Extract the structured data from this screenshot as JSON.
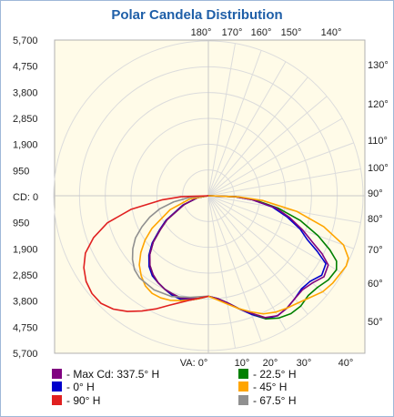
{
  "chart_data": {
    "type": "polar",
    "title": "Polar Candela Distribution",
    "candela_ticks": [
      "5,700",
      "4,750",
      "3,800",
      "2,850",
      "1,900",
      "950",
      "CD: 0",
      "950",
      "1,900",
      "2,850",
      "3,800",
      "4,750",
      "5,700"
    ],
    "top_angle_labels": [
      "180°",
      "170°",
      "160°",
      "150°",
      "140°"
    ],
    "right_angle_labels": [
      "130°",
      "120°",
      "110°",
      "100°",
      "90°",
      "80°",
      "70°",
      "60°",
      "50°"
    ],
    "bottom_angle_labels": [
      "VA: 0°",
      "10°",
      "20°",
      "30°",
      "40°"
    ],
    "rmax": 5700,
    "legend": [
      {
        "label": "- Max Cd: 337.5° H",
        "color": "#800080"
      },
      {
        "label": "- 22.5° H",
        "color": "#008000"
      },
      {
        "label": "- 0° H",
        "color": "#0000cc"
      },
      {
        "label": "- 45° H",
        "color": "#ffa500"
      },
      {
        "label": "- 90° H",
        "color": "#e02020"
      },
      {
        "label": "- 67.5° H",
        "color": "#909090"
      }
    ],
    "series": [
      {
        "color": "#0000cc",
        "right": true,
        "points": [
          [
            0,
            3700
          ],
          [
            5,
            3800
          ],
          [
            10,
            4000
          ],
          [
            15,
            4300
          ],
          [
            20,
            4650
          ],
          [
            25,
            5000
          ],
          [
            30,
            5100
          ],
          [
            35,
            5050
          ],
          [
            40,
            4950
          ],
          [
            45,
            4850
          ],
          [
            50,
            4900
          ],
          [
            55,
            5100
          ],
          [
            60,
            5000
          ],
          [
            63,
            4500
          ],
          [
            66,
            4000
          ],
          [
            70,
            3600
          ],
          [
            75,
            3000
          ],
          [
            80,
            2400
          ],
          [
            85,
            1600
          ],
          [
            88,
            1000
          ],
          [
            90,
            0
          ]
        ]
      },
      {
        "color": "#0000cc",
        "right": false,
        "points": [
          [
            0,
            3700
          ],
          [
            5,
            3800
          ],
          [
            10,
            3900
          ],
          [
            15,
            3950
          ],
          [
            20,
            3900
          ],
          [
            25,
            3800
          ],
          [
            30,
            3700
          ],
          [
            35,
            3600
          ],
          [
            40,
            3400
          ],
          [
            45,
            3100
          ],
          [
            50,
            2700
          ],
          [
            55,
            2200
          ],
          [
            60,
            1800
          ],
          [
            70,
            1000
          ],
          [
            80,
            400
          ],
          [
            90,
            0
          ]
        ]
      },
      {
        "color": "#008000",
        "right": true,
        "points": [
          [
            0,
            3700
          ],
          [
            5,
            3800
          ],
          [
            10,
            4000
          ],
          [
            15,
            4300
          ],
          [
            20,
            4600
          ],
          [
            25,
            5000
          ],
          [
            30,
            5200
          ],
          [
            35,
            5300
          ],
          [
            40,
            5300
          ],
          [
            45,
            5200
          ],
          [
            50,
            5250
          ],
          [
            55,
            5400
          ],
          [
            60,
            5450
          ],
          [
            63,
            5300
          ],
          [
            66,
            4900
          ],
          [
            70,
            4300
          ],
          [
            75,
            3500
          ],
          [
            80,
            2600
          ],
          [
            85,
            1700
          ],
          [
            88,
            1000
          ],
          [
            90,
            0
          ]
        ]
      },
      {
        "color": "#008000",
        "right": false,
        "points": [
          [
            0,
            3700
          ],
          [
            5,
            3800
          ],
          [
            10,
            3850
          ],
          [
            15,
            3900
          ],
          [
            20,
            3850
          ],
          [
            25,
            3800
          ],
          [
            30,
            3700
          ],
          [
            35,
            3550
          ],
          [
            40,
            3350
          ],
          [
            45,
            3050
          ],
          [
            50,
            2650
          ],
          [
            55,
            2150
          ],
          [
            60,
            1750
          ],
          [
            70,
            950
          ],
          [
            80,
            400
          ],
          [
            90,
            0
          ]
        ]
      },
      {
        "color": "#800080",
        "right": true,
        "points": [
          [
            0,
            3700
          ],
          [
            5,
            3800
          ],
          [
            10,
            4000
          ],
          [
            15,
            4300
          ],
          [
            20,
            4600
          ],
          [
            25,
            4950
          ],
          [
            30,
            5100
          ],
          [
            35,
            5050
          ],
          [
            40,
            4950
          ],
          [
            45,
            4900
          ],
          [
            50,
            5000
          ],
          [
            55,
            5200
          ],
          [
            60,
            5100
          ],
          [
            63,
            4700
          ],
          [
            66,
            4200
          ],
          [
            70,
            3700
          ],
          [
            75,
            3100
          ],
          [
            80,
            2500
          ],
          [
            85,
            1600
          ],
          [
            88,
            1000
          ],
          [
            90,
            0
          ]
        ]
      },
      {
        "color": "#800080",
        "right": false,
        "points": [
          [
            0,
            3700
          ],
          [
            5,
            3800
          ],
          [
            10,
            3850
          ],
          [
            15,
            3900
          ],
          [
            20,
            3850
          ],
          [
            25,
            3800
          ],
          [
            30,
            3700
          ],
          [
            35,
            3550
          ],
          [
            40,
            3350
          ],
          [
            45,
            3050
          ],
          [
            50,
            2650
          ],
          [
            55,
            2150
          ],
          [
            60,
            1750
          ],
          [
            70,
            950
          ],
          [
            80,
            400
          ],
          [
            90,
            0
          ]
        ]
      },
      {
        "color": "#ffa500",
        "right": true,
        "points": [
          [
            0,
            3700
          ],
          [
            5,
            3850
          ],
          [
            10,
            4050
          ],
          [
            15,
            4300
          ],
          [
            20,
            4550
          ],
          [
            25,
            4800
          ],
          [
            30,
            4950
          ],
          [
            35,
            5050
          ],
          [
            40,
            5150
          ],
          [
            45,
            5300
          ],
          [
            50,
            5500
          ],
          [
            55,
            5600
          ],
          [
            60,
            5650
          ],
          [
            63,
            5700
          ],
          [
            66,
            5650
          ],
          [
            70,
            5300
          ],
          [
            75,
            4400
          ],
          [
            80,
            3300
          ],
          [
            85,
            2000
          ],
          [
            88,
            1100
          ],
          [
            90,
            0
          ]
        ]
      },
      {
        "color": "#ffa500",
        "right": false,
        "points": [
          [
            0,
            3700
          ],
          [
            5,
            3800
          ],
          [
            10,
            3900
          ],
          [
            15,
            4000
          ],
          [
            20,
            4100
          ],
          [
            25,
            4150
          ],
          [
            30,
            4150
          ],
          [
            35,
            4050
          ],
          [
            40,
            3850
          ],
          [
            45,
            3600
          ],
          [
            50,
            3250
          ],
          [
            55,
            2850
          ],
          [
            60,
            2400
          ],
          [
            70,
            1500
          ],
          [
            80,
            700
          ],
          [
            90,
            0
          ]
        ]
      },
      {
        "color": "#909090",
        "right": false,
        "points": [
          [
            0,
            3700
          ],
          [
            10,
            3800
          ],
          [
            20,
            3950
          ],
          [
            30,
            4000
          ],
          [
            40,
            3950
          ],
          [
            45,
            3850
          ],
          [
            50,
            3650
          ],
          [
            55,
            3400
          ],
          [
            60,
            3100
          ],
          [
            65,
            2700
          ],
          [
            70,
            2300
          ],
          [
            75,
            1850
          ],
          [
            80,
            1300
          ],
          [
            85,
            700
          ],
          [
            90,
            0
          ]
        ]
      },
      {
        "color": "#e02020",
        "right": false,
        "points": [
          [
            0,
            3700
          ],
          [
            10,
            3900
          ],
          [
            20,
            4300
          ],
          [
            25,
            4600
          ],
          [
            30,
            4900
          ],
          [
            35,
            5200
          ],
          [
            40,
            5450
          ],
          [
            45,
            5600
          ],
          [
            50,
            5600
          ],
          [
            55,
            5500
          ],
          [
            60,
            5300
          ],
          [
            65,
            5000
          ],
          [
            70,
            4500
          ],
          [
            75,
            3850
          ],
          [
            80,
            2900
          ],
          [
            85,
            1700
          ],
          [
            88,
            1000
          ],
          [
            90,
            0
          ]
        ]
      }
    ]
  }
}
